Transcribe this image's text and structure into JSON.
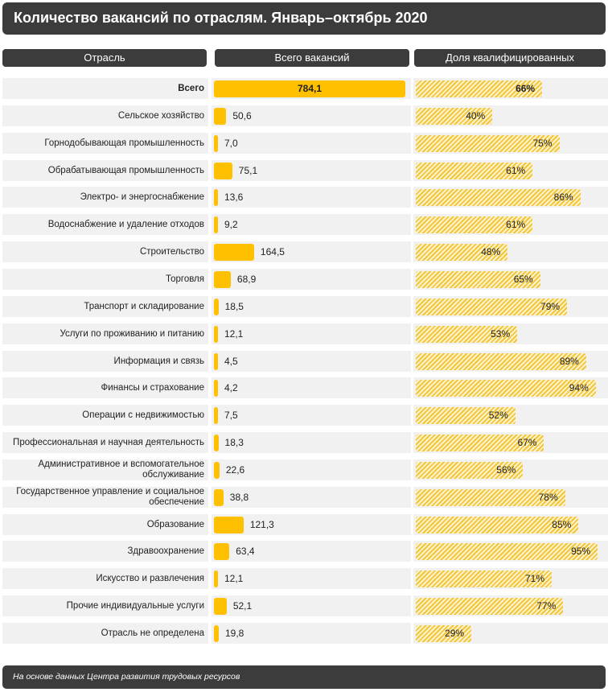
{
  "title": "Количество вакансий по отраслям. Январь–октябрь  2020",
  "columns": {
    "industry": "Отрасль",
    "total": "Всего вакансий",
    "share": "Доля квалифицированных"
  },
  "footer": "На основе данных  Центра развития трудовых ресурсов",
  "colors": {
    "bar": "#ffc000",
    "hatch": "#f1c63c",
    "header_bg": "#3c3c3c",
    "row_bg": "#f1f1f1"
  },
  "chart_data": {
    "type": "bar",
    "title": "Количество вакансий по отраслям. Январь–октябрь  2020",
    "categories": [
      "Всего",
      "Сельское хозяйство",
      "Горнодобывающая промышленность",
      "Обрабатывающая промышленность",
      "Электро- и энергоснабжение",
      "Водоснабжение  и удаление отходов",
      "Строительство",
      "Торговля",
      "Транспорт и складирование",
      "Услуги по проживанию и питанию",
      "Информация и связь",
      "Финансы и страхование",
      "Операции с недвижимостью",
      "Профессиональная и научная деятельность",
      "Административное и вспомогательное обслуживание",
      "Государственное управление и социальное обеспечение",
      "Образование",
      "Здравоохранение",
      "Искусство и развлечения",
      "Прочие  индивидуальные  услуги",
      "Отрасль не определена"
    ],
    "series": [
      {
        "name": "Всего вакансий",
        "values": [
          784.1,
          50.6,
          7.0,
          75.1,
          13.6,
          9.2,
          164.5,
          68.9,
          18.5,
          12.1,
          4.5,
          4.2,
          7.5,
          18.3,
          22.6,
          38.8,
          121.3,
          63.4,
          12.1,
          52.1,
          19.8
        ],
        "labels": [
          "784,1",
          "50,6",
          "7,0",
          "75,1",
          "13,6",
          "9,2",
          "164,5",
          "68,9",
          "18,5",
          "12,1",
          "4,5",
          "4,2",
          "7,5",
          "18,3",
          "22,6",
          "38,8",
          "121,3",
          "63,4",
          "12,1",
          "52,1",
          "19,8"
        ]
      },
      {
        "name": "Доля квалифицированных",
        "values": [
          66,
          40,
          75,
          61,
          86,
          61,
          48,
          65,
          79,
          53,
          89,
          94,
          52,
          67,
          56,
          78,
          85,
          95,
          71,
          77,
          29
        ],
        "labels": [
          "66%",
          "40%",
          "75%",
          "61%",
          "86%",
          "61%",
          "48%",
          "65%",
          "79%",
          "53%",
          "89%",
          "94%",
          "52%",
          "67%",
          "56%",
          "78%",
          "85%",
          "95%",
          "71%",
          "77%",
          "29%"
        ]
      }
    ],
    "xlabel": "",
    "ylabel": ""
  }
}
